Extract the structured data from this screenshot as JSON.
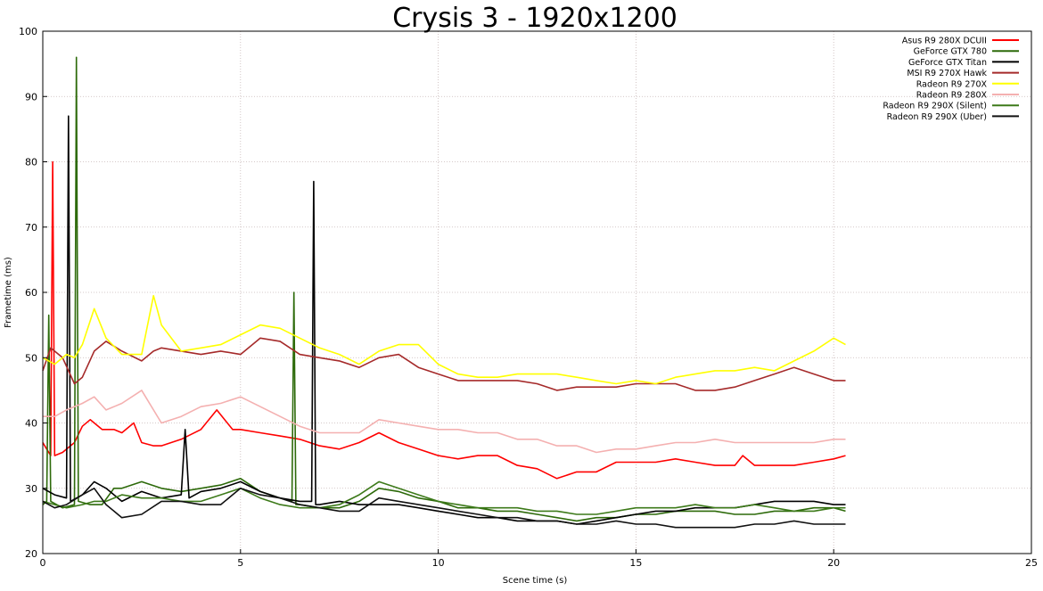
{
  "chart_data": {
    "type": "line",
    "title": "Crysis 3 - 1920x1200",
    "xlabel": "Scene time (s)",
    "ylabel": "Frametime (ms)",
    "xlim": [
      0,
      25
    ],
    "ylim": [
      20,
      100
    ],
    "xticks": [
      "0",
      "5",
      "10",
      "15",
      "20",
      "25"
    ],
    "yticks": [
      "20",
      "30",
      "40",
      "50",
      "60",
      "70",
      "80",
      "90",
      "100"
    ],
    "grid": true,
    "legend_position": "top-right",
    "series": [
      {
        "name": "Asus R9 280X DCUII",
        "color": "#ff0000",
        "x": [
          0,
          0.1,
          0.2,
          0.25,
          0.3,
          0.5,
          0.8,
          1.0,
          1.2,
          1.5,
          1.8,
          2.0,
          2.3,
          2.5,
          2.8,
          3.0,
          3.5,
          4.0,
          4.4,
          4.8,
          5.0,
          5.5,
          6.0,
          6.5,
          7.0,
          7.5,
          8.0,
          8.5,
          9.0,
          9.5,
          10.0,
          10.5,
          11.0,
          11.5,
          12.0,
          12.5,
          13.0,
          13.5,
          14.0,
          14.5,
          15.0,
          15.5,
          16.0,
          16.5,
          17.0,
          17.5,
          17.7,
          18.0,
          18.5,
          19.0,
          19.5,
          20.0,
          20.3
        ],
        "y": [
          37,
          36,
          35,
          80,
          35,
          35.5,
          37,
          39.5,
          40.5,
          39,
          39,
          38.5,
          40,
          37,
          36.5,
          36.5,
          37.5,
          39,
          42,
          39,
          39,
          38.5,
          38,
          37.5,
          36.5,
          36,
          37,
          38.5,
          37,
          36,
          35,
          34.5,
          35,
          35,
          33.5,
          33,
          31.5,
          32.5,
          32.5,
          34,
          34,
          34,
          34.5,
          34,
          33.5,
          33.5,
          35,
          33.5,
          33.5,
          33.5,
          34,
          34.5,
          35
        ]
      },
      {
        "name": "GeForce GTX 780",
        "color": "#2d6a0a",
        "x": [
          0,
          0.1,
          0.15,
          0.2,
          0.5,
          0.8,
          0.85,
          0.9,
          1.2,
          1.5,
          1.8,
          2.0,
          2.5,
          3.0,
          3.5,
          4.0,
          4.5,
          5.0,
          5.5,
          6.0,
          6.3,
          6.35,
          6.4,
          6.5,
          7.0,
          7.5,
          8.0,
          8.5,
          9.0,
          9.5,
          10.0,
          10.5,
          11.0,
          11.5,
          12.0,
          12.5,
          13.0,
          13.5,
          14.0,
          14.5,
          15.0,
          15.5,
          16.0,
          16.5,
          17.0,
          17.5,
          18.0,
          18.5,
          19.0,
          19.5,
          20.0,
          20.3
        ],
        "y": [
          27.5,
          28,
          56.5,
          28,
          27,
          27.5,
          96,
          28,
          27.5,
          27.5,
          30,
          30,
          31,
          30,
          29.5,
          30,
          30.5,
          31.5,
          29.5,
          28.5,
          28,
          60,
          27.5,
          27.5,
          27,
          27,
          28,
          30,
          29.5,
          28.5,
          28,
          27,
          27,
          26.5,
          26.5,
          26,
          25.5,
          25,
          25.5,
          25.5,
          26,
          26,
          26.5,
          26.5,
          26.5,
          26,
          26,
          26.5,
          26.5,
          27,
          27,
          26.5
        ]
      },
      {
        "name": "GeForce GTX Titan",
        "color": "#000000",
        "x": [
          0,
          0.3,
          0.6,
          0.65,
          0.7,
          1.0,
          1.3,
          1.6,
          2.0,
          2.5,
          3.0,
          3.5,
          3.6,
          3.7,
          4.0,
          4.5,
          5.0,
          5.5,
          6.0,
          6.5,
          6.8,
          6.85,
          6.9,
          7.0,
          7.5,
          8.0,
          8.5,
          9.0,
          9.5,
          10.0,
          10.5,
          11.0,
          11.5,
          12.0,
          12.5,
          13.0,
          13.5,
          14.0,
          14.5,
          15.0,
          15.5,
          16.0,
          16.5,
          17.0,
          17.5,
          18.0,
          18.5,
          19.0,
          19.5,
          20.0,
          20.3
        ],
        "y": [
          30,
          29,
          28.5,
          87,
          28,
          29,
          31,
          30,
          28,
          29.5,
          28.5,
          29,
          39,
          28.5,
          29.5,
          30,
          31,
          29.5,
          28.5,
          28,
          28,
          77,
          27.5,
          27.5,
          28,
          27.5,
          27.5,
          27.5,
          27,
          26.5,
          26,
          25.5,
          25.5,
          25,
          25,
          25,
          24.5,
          25,
          25.5,
          26,
          26.5,
          26.5,
          27,
          27,
          27,
          27.5,
          28,
          28,
          28,
          27.5,
          27.5
        ]
      },
      {
        "name": "MSI R9 270X Hawk",
        "color": "#a52a2a",
        "x": [
          0,
          0.2,
          0.5,
          0.8,
          1.0,
          1.3,
          1.6,
          2.0,
          2.5,
          2.8,
          3.0,
          3.5,
          4.0,
          4.5,
          5.0,
          5.5,
          6.0,
          6.5,
          7.0,
          7.5,
          8.0,
          8.5,
          9.0,
          9.5,
          10.0,
          10.5,
          11.0,
          11.5,
          12.0,
          12.5,
          13.0,
          13.5,
          14.0,
          14.5,
          15.0,
          15.5,
          16.0,
          16.5,
          17.0,
          17.5,
          18.0,
          18.5,
          19.0,
          19.5,
          20.0,
          20.3
        ],
        "y": [
          48,
          51.5,
          50,
          46,
          47,
          51,
          52.5,
          51,
          49.5,
          51,
          51.5,
          51,
          50.5,
          51,
          50.5,
          53,
          52.5,
          50.5,
          50,
          49.5,
          48.5,
          50,
          50.5,
          48.5,
          47.5,
          46.5,
          46.5,
          46.5,
          46.5,
          46,
          45,
          45.5,
          45.5,
          45.5,
          46,
          46,
          46,
          45,
          45,
          45.5,
          46.5,
          47.5,
          48.5,
          47.5,
          46.5,
          46.5
        ]
      },
      {
        "name": "Radeon R9 270X",
        "color": "#ffff00",
        "x": [
          0,
          0.3,
          0.6,
          0.8,
          1.0,
          1.3,
          1.6,
          2.0,
          2.5,
          2.8,
          3.0,
          3.5,
          4.0,
          4.5,
          5.0,
          5.5,
          6.0,
          6.5,
          7.0,
          7.5,
          8.0,
          8.5,
          9.0,
          9.5,
          10.0,
          10.5,
          11.0,
          11.5,
          12.0,
          12.5,
          13.0,
          13.5,
          14.0,
          14.5,
          15.0,
          15.5,
          16.0,
          16.5,
          17.0,
          17.5,
          18.0,
          18.5,
          19.0,
          19.5,
          20.0,
          20.3
        ],
        "y": [
          50,
          49,
          50.5,
          50,
          52,
          57.5,
          53,
          50.5,
          50.5,
          59.5,
          55,
          51,
          51.5,
          52,
          53.5,
          55,
          54.5,
          53,
          51.5,
          50.5,
          49,
          51,
          52,
          52,
          49,
          47.5,
          47,
          47,
          47.5,
          47.5,
          47.5,
          47,
          46.5,
          46,
          46.5,
          46,
          47,
          47.5,
          48,
          48,
          48.5,
          48,
          49.5,
          51,
          53,
          52
        ]
      },
      {
        "name": "Radeon R9 280X",
        "color": "#f4b0b0",
        "x": [
          0,
          0.3,
          0.6,
          1.0,
          1.3,
          1.6,
          2.0,
          2.5,
          3.0,
          3.5,
          4.0,
          4.5,
          5.0,
          5.5,
          6.0,
          6.5,
          7.0,
          7.5,
          8.0,
          8.5,
          9.0,
          9.5,
          10.0,
          10.5,
          11.0,
          11.5,
          12.0,
          12.5,
          13.0,
          13.5,
          14.0,
          14.5,
          15.0,
          15.5,
          16.0,
          16.5,
          17.0,
          17.5,
          18.0,
          18.5,
          19.0,
          19.5,
          20.0,
          20.3
        ],
        "y": [
          41,
          41,
          42,
          43,
          44,
          42,
          43,
          45,
          40,
          41,
          42.5,
          43,
          44,
          42.5,
          41,
          39.5,
          38.5,
          38.5,
          38.5,
          40.5,
          40,
          39.5,
          39,
          39,
          38.5,
          38.5,
          37.5,
          37.5,
          36.5,
          36.5,
          35.5,
          36,
          36,
          36.5,
          37,
          37,
          37.5,
          37,
          37,
          37,
          37,
          37,
          37.5,
          37.5
        ]
      },
      {
        "name": "Radeon R9 290X (Silent)",
        "color": "#3d7a1a",
        "x": [
          0,
          0.3,
          0.6,
          1.0,
          1.3,
          1.6,
          2.0,
          2.5,
          3.0,
          3.5,
          4.0,
          4.5,
          5.0,
          5.5,
          6.0,
          6.5,
          7.0,
          7.5,
          8.0,
          8.5,
          9.0,
          9.5,
          10.0,
          10.5,
          11.0,
          11.5,
          12.0,
          12.5,
          13.0,
          13.5,
          14.0,
          14.5,
          15.0,
          15.5,
          16.0,
          16.5,
          17.0,
          17.5,
          18.0,
          18.5,
          19.0,
          19.5,
          20.0,
          20.3
        ],
        "y": [
          28,
          27.5,
          27,
          27.5,
          28,
          28,
          29,
          28.5,
          28.5,
          28,
          28,
          29,
          30,
          28.5,
          27.5,
          27,
          27,
          27.5,
          29,
          31,
          30,
          29,
          28,
          27.5,
          27,
          27,
          27,
          26.5,
          26.5,
          26,
          26,
          26.5,
          27,
          27,
          27,
          27.5,
          27,
          27,
          27.5,
          27,
          26.5,
          26.5,
          27,
          27
        ]
      },
      {
        "name": "Radeon R9 290X (Uber)",
        "color": "#111111",
        "x": [
          0,
          0.3,
          0.6,
          1.0,
          1.3,
          1.6,
          2.0,
          2.5,
          3.0,
          3.5,
          4.0,
          4.5,
          5.0,
          5.5,
          6.0,
          6.5,
          7.0,
          7.5,
          8.0,
          8.5,
          9.0,
          9.5,
          10.0,
          10.5,
          11.0,
          11.5,
          12.0,
          12.5,
          13.0,
          13.5,
          14.0,
          14.5,
          15.0,
          15.5,
          16.0,
          16.5,
          17.0,
          17.5,
          18.0,
          18.5,
          19.0,
          19.5,
          20.0,
          20.3
        ],
        "y": [
          28,
          27,
          27.5,
          29,
          30,
          27.5,
          25.5,
          26,
          28,
          28,
          27.5,
          27.5,
          30,
          29,
          28.5,
          27.5,
          27,
          26.5,
          26.5,
          28.5,
          28,
          27.5,
          27,
          26.5,
          26,
          25.5,
          25.5,
          25,
          25,
          24.5,
          24.5,
          25,
          24.5,
          24.5,
          24,
          24,
          24,
          24,
          24.5,
          24.5,
          25,
          24.5,
          24.5,
          24.5
        ]
      }
    ]
  }
}
